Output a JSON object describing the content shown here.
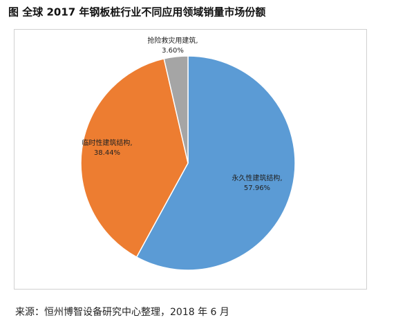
{
  "chart_data": {
    "type": "pie",
    "title": "图  全球 2017 年钢板桩行业不同应用领域销量市场份额",
    "categories": [
      "永久性建筑结构,",
      "临时性建筑结构,",
      "抢险救灾用建筑,"
    ],
    "values": [
      57.96,
      38.44,
      3.6
    ],
    "value_labels": [
      "57.96%",
      "38.44%",
      "3.60%"
    ],
    "colors": [
      "#5b9bd5",
      "#ed7d31",
      "#a5a5a5"
    ]
  },
  "source": "来源：恒州博智设备研究中心整理，2018 年 6 月"
}
